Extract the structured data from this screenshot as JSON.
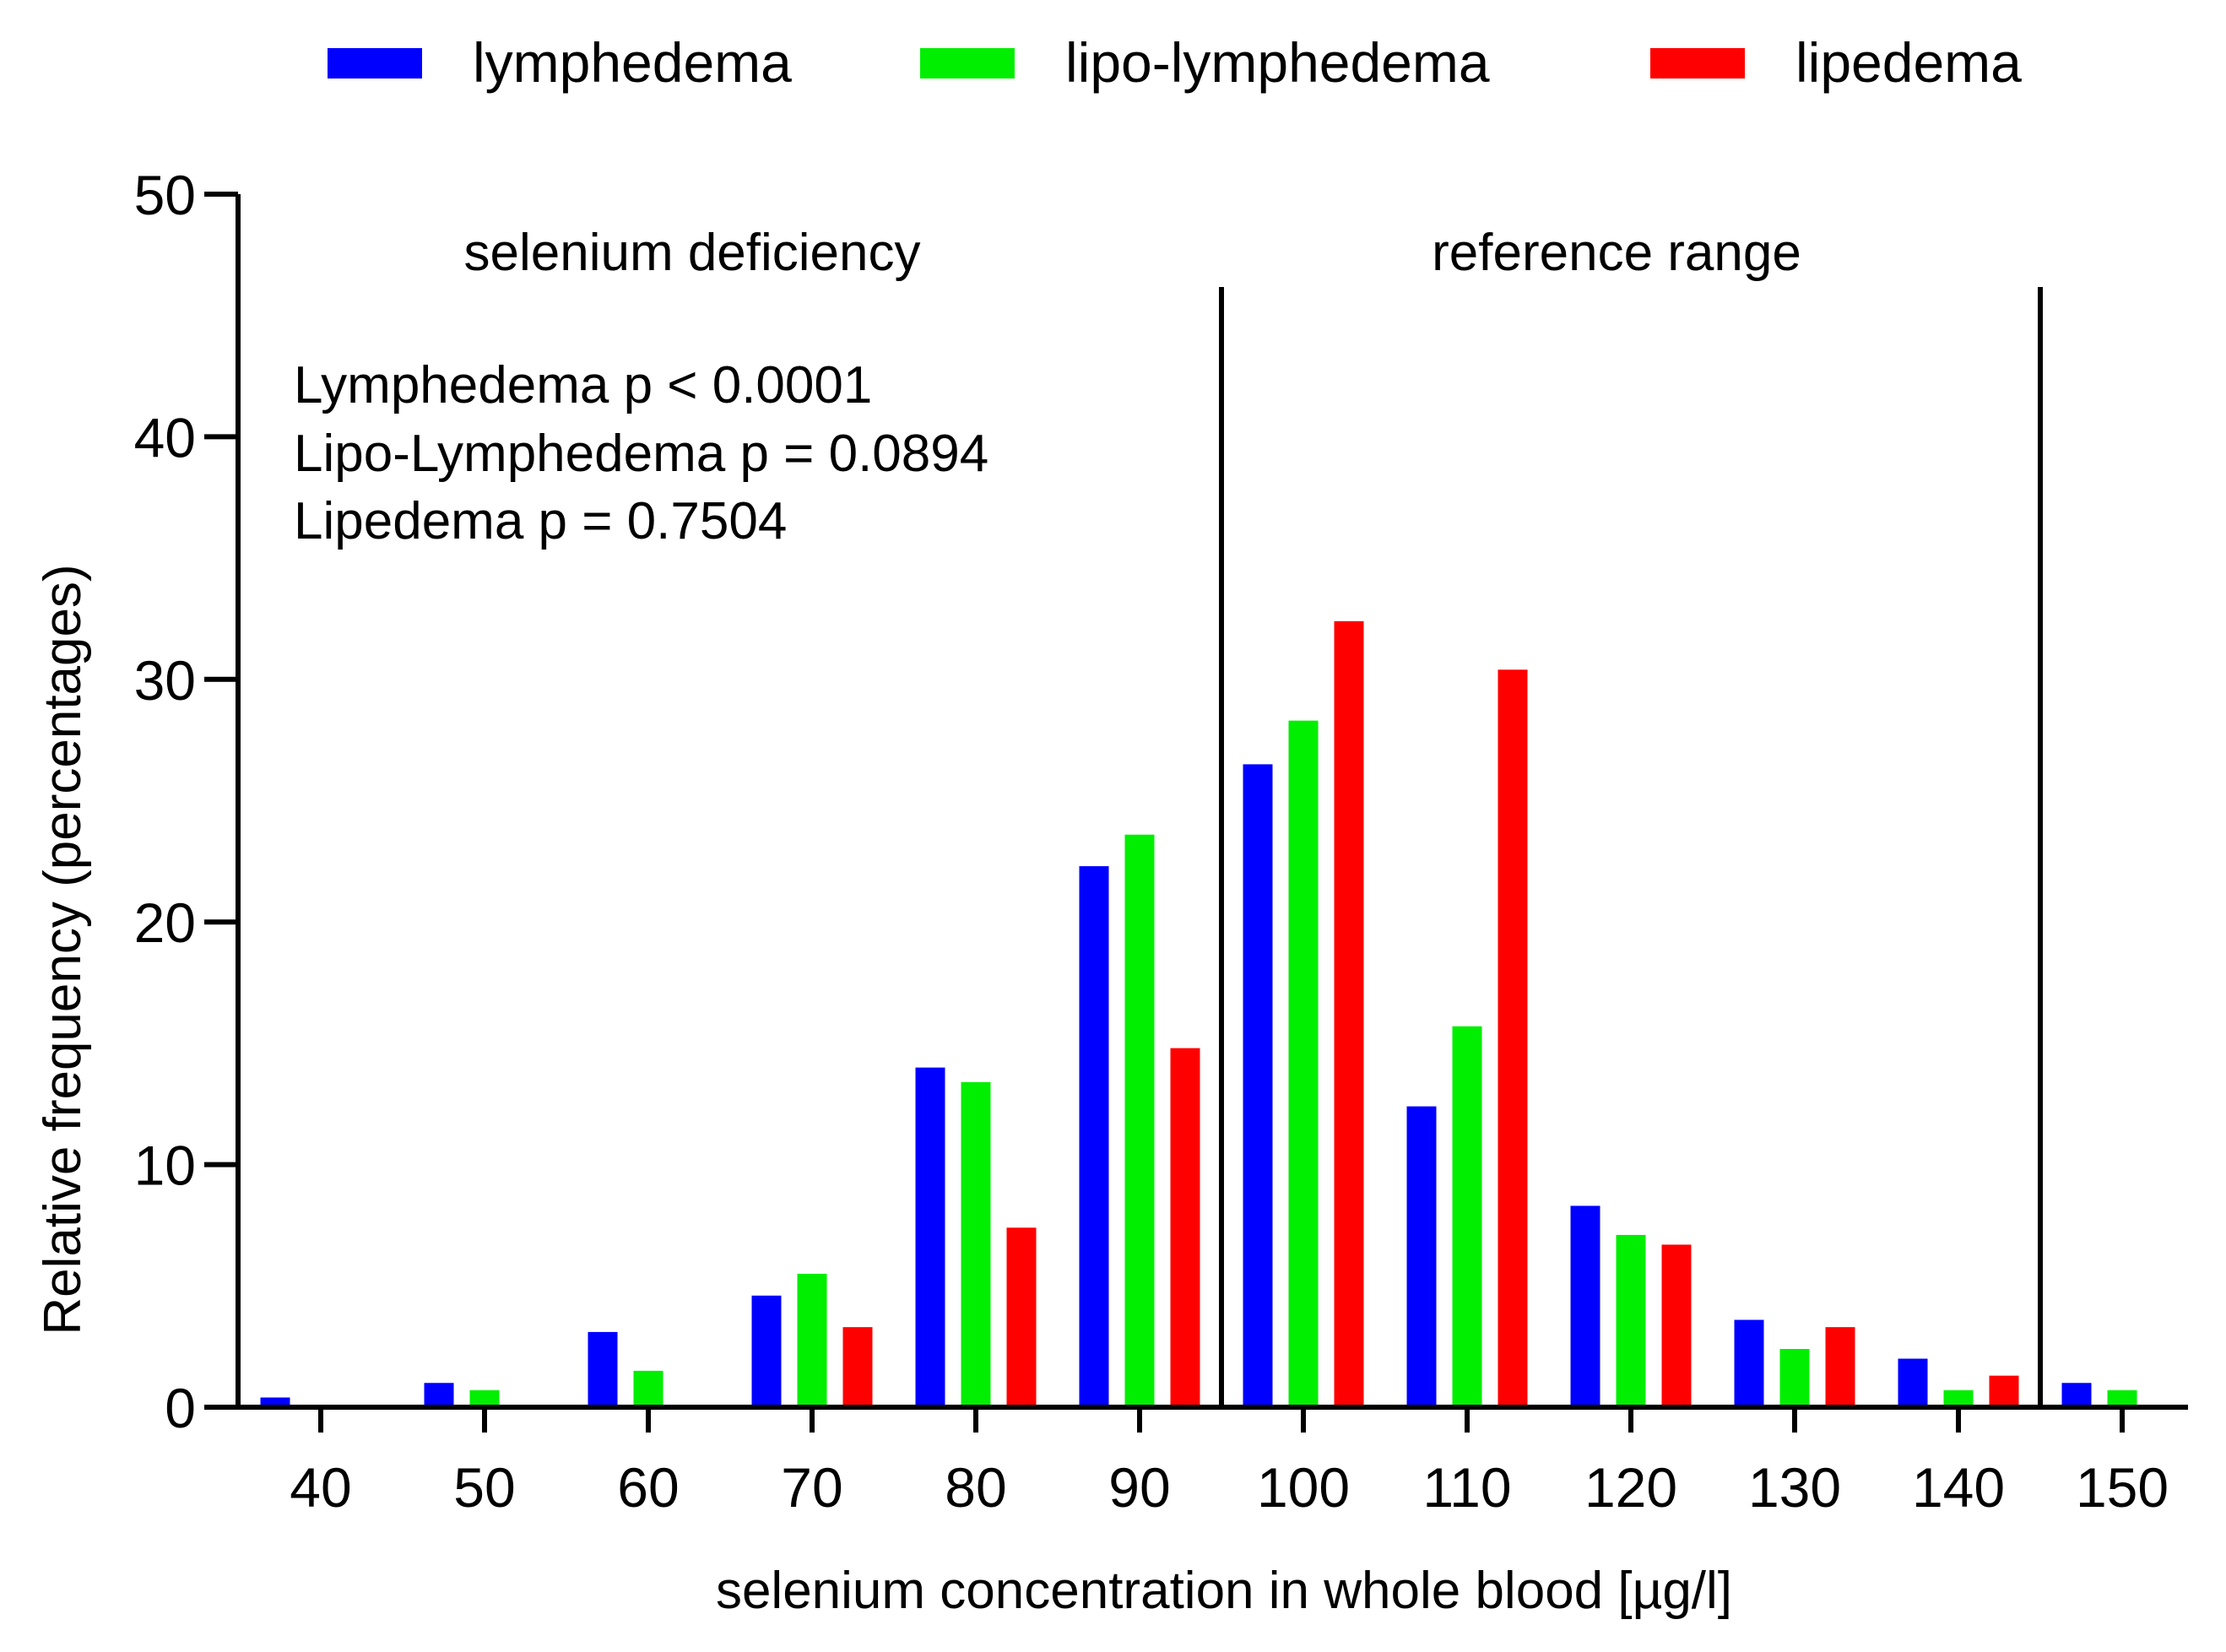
{
  "chart_data": {
    "type": "bar",
    "title": "",
    "xlabel": "selenium concentration in whole blood [µg/l]",
    "ylabel": "Relative frequency (percentages)",
    "ylim": [
      0,
      50
    ],
    "yticks": [
      0,
      10,
      20,
      30,
      40,
      50
    ],
    "categories": [
      "40",
      "50",
      "60",
      "70",
      "80",
      "90",
      "100",
      "110",
      "120",
      "130",
      "140",
      "150"
    ],
    "series": [
      {
        "name": "lymphedema",
        "color": "#0000ff",
        "values": [
          0.4,
          1.0,
          3.1,
          4.6,
          14.0,
          22.3,
          26.5,
          12.4,
          8.3,
          3.6,
          2.0,
          1.0
        ]
      },
      {
        "name": "lipo-lymphedema",
        "color": "#00ee00",
        "values": [
          0,
          0.7,
          1.5,
          5.5,
          13.4,
          23.6,
          28.3,
          15.7,
          7.1,
          2.4,
          0.7,
          0.7
        ]
      },
      {
        "name": "lipedema",
        "color": "#ff0000",
        "values": [
          0,
          0,
          0,
          3.3,
          7.4,
          14.8,
          32.4,
          30.4,
          6.7,
          3.3,
          1.3,
          0
        ]
      }
    ],
    "legend_position": "top",
    "region_dividers": [
      95,
      145
    ],
    "regions": [
      {
        "label": "selenium deficiency"
      },
      {
        "label": "reference range"
      }
    ],
    "annotations": [
      "Lymphedema p < 0.0001",
      "Lipo-Lymphedema p = 0.0894",
      "Lipedema p = 0.7504"
    ],
    "grid": false
  }
}
